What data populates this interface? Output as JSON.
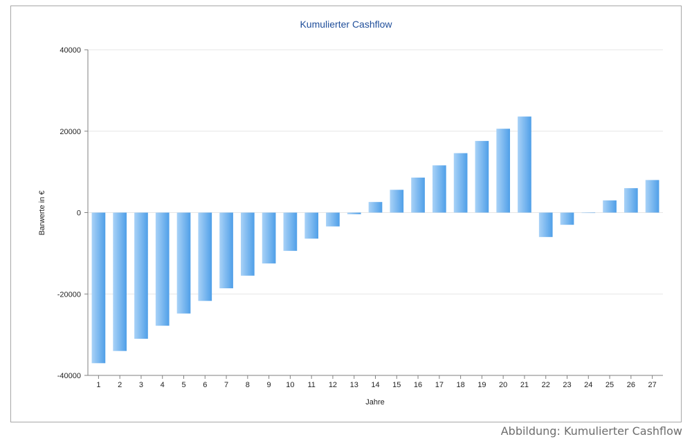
{
  "caption": "Abbildung: Kumulierter Cashflow",
  "colors": {
    "bar_light": "#a9d2f7",
    "bar_dark": "#4f9fe8",
    "title": "#1f4e9a",
    "grid": "#e6e6e6",
    "axis": "#7f7f7f"
  },
  "chart_data": {
    "type": "bar",
    "title": "Kumulierter Cashflow",
    "xlabel": "Jahre",
    "ylabel": "Barwerte in €",
    "ylim": [
      -40000,
      40000
    ],
    "yticks": [
      "40000",
      "20000",
      "0",
      "-20000",
      "-40000"
    ],
    "yticks_values": [
      40000,
      20000,
      0,
      -20000,
      -40000
    ],
    "grid": true,
    "legend": "none",
    "categories": [
      "1",
      "2",
      "3",
      "4",
      "5",
      "6",
      "7",
      "8",
      "9",
      "10",
      "11",
      "12",
      "13",
      "14",
      "15",
      "16",
      "17",
      "18",
      "19",
      "20",
      "21",
      "22",
      "23",
      "24",
      "25",
      "26",
      "27"
    ],
    "values": [
      -37000,
      -34000,
      -31000,
      -27800,
      -24800,
      -21700,
      -18600,
      -15500,
      -12500,
      -9400,
      -6400,
      -3400,
      -400,
      2600,
      5600,
      8600,
      11600,
      14600,
      17600,
      20600,
      23600,
      -6000,
      -3000,
      -100,
      3000,
      6000,
      8000
    ]
  }
}
